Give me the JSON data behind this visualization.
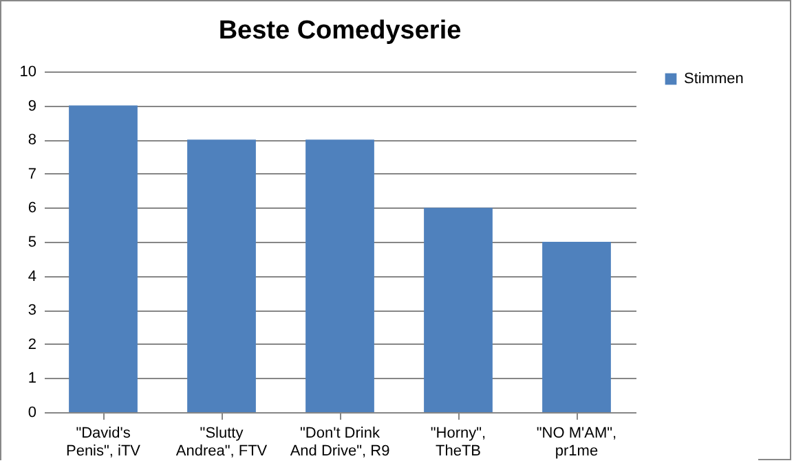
{
  "chart_data": {
    "type": "bar",
    "title": "Beste Comedyserie",
    "categories": [
      "\"David's Penis\", iTV",
      "\"Slutty Andrea\", FTV",
      "\"Don't Drink And Drive\", R9",
      "\"Horny\", TheTB",
      "\"NO M'AM\", pr1me"
    ],
    "series": [
      {
        "name": "Stimmen",
        "color": "#4f81bd",
        "values": [
          9,
          8,
          8,
          6,
          5
        ]
      }
    ],
    "ylim": [
      0,
      10
    ],
    "yticks": [
      0,
      1,
      2,
      3,
      4,
      5,
      6,
      7,
      8,
      9,
      10
    ],
    "grid": "y",
    "legend": "right"
  }
}
